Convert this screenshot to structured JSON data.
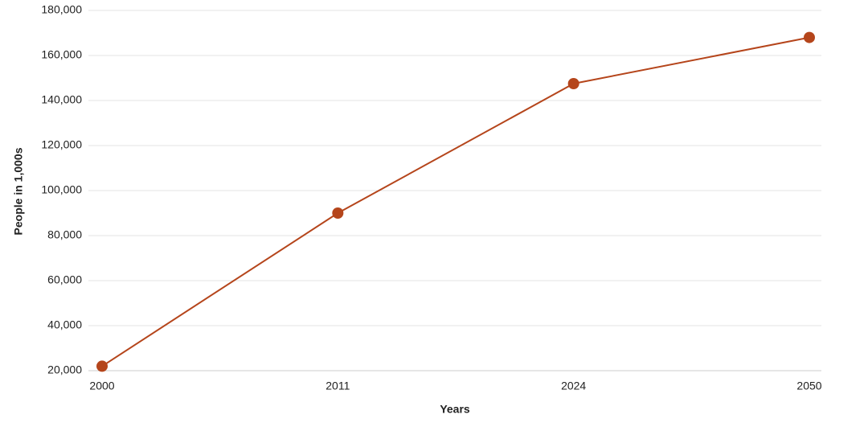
{
  "chart_data": {
    "type": "line",
    "x_label": "Years",
    "y_label": "People in 1,000s",
    "categories": [
      "2000",
      "2011",
      "2024",
      "2050"
    ],
    "series": [
      {
        "name": "People",
        "color": "#b5451b",
        "values": [
          22000,
          90000,
          147500,
          168000
        ]
      }
    ],
    "ylim": [
      20000,
      180000
    ],
    "yticks": [
      {
        "value": 20000,
        "label": "20,000"
      },
      {
        "value": 40000,
        "label": "40,000"
      },
      {
        "value": 60000,
        "label": "60,000"
      },
      {
        "value": 80000,
        "label": "80,000"
      },
      {
        "value": 100000,
        "label": "100,000"
      },
      {
        "value": 120000,
        "label": "120,000"
      },
      {
        "value": 140000,
        "label": "140,000"
      },
      {
        "value": 160000,
        "label": "160,000"
      },
      {
        "value": 180000,
        "label": "180,000"
      }
    ],
    "grid": true
  }
}
